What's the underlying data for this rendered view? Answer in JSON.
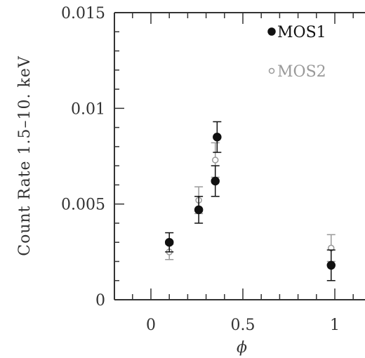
{
  "chart_data": {
    "type": "scatter",
    "title": "",
    "xlabel": "ϕ",
    "ylabel": "Count Rate 1.5–10. keV",
    "xlim": [
      -0.25,
      1.05
    ],
    "ylim": [
      0,
      0.015
    ],
    "xticks": [
      {
        "value": 0,
        "label": "0"
      },
      {
        "value": 0.5,
        "label": "0.5"
      },
      {
        "value": 1,
        "label": "1"
      }
    ],
    "yticks": [
      {
        "value": 0,
        "label": "0"
      },
      {
        "value": 0.005,
        "label": "0.005"
      },
      {
        "value": 0.01,
        "label": "0.01"
      },
      {
        "value": 0.015,
        "label": "0.015"
      }
    ],
    "grid": false,
    "legend_position": "top-right",
    "series": [
      {
        "name": "MOS1",
        "marker": "filled-circle",
        "color": "#111111",
        "points": [
          {
            "x": 0.1,
            "y": 0.003,
            "err": 0.0005
          },
          {
            "x": 0.26,
            "y": 0.0047,
            "err": 0.0007
          },
          {
            "x": 0.35,
            "y": 0.0062,
            "err": 0.0008
          },
          {
            "x": 0.36,
            "y": 0.0085,
            "err": 0.0008
          },
          {
            "x": 0.98,
            "y": 0.0018,
            "err": 0.0008
          }
        ]
      },
      {
        "name": "MOS2",
        "marker": "open-circle",
        "color": "#999999",
        "points": [
          {
            "x": 0.1,
            "y": 0.0025,
            "err": 0.0004
          },
          {
            "x": 0.26,
            "y": 0.0052,
            "err": 0.0007
          },
          {
            "x": 0.35,
            "y": 0.0073,
            "err": 0.0009
          },
          {
            "x": 0.98,
            "y": 0.0027,
            "err": 0.0007
          }
        ]
      }
    ]
  }
}
